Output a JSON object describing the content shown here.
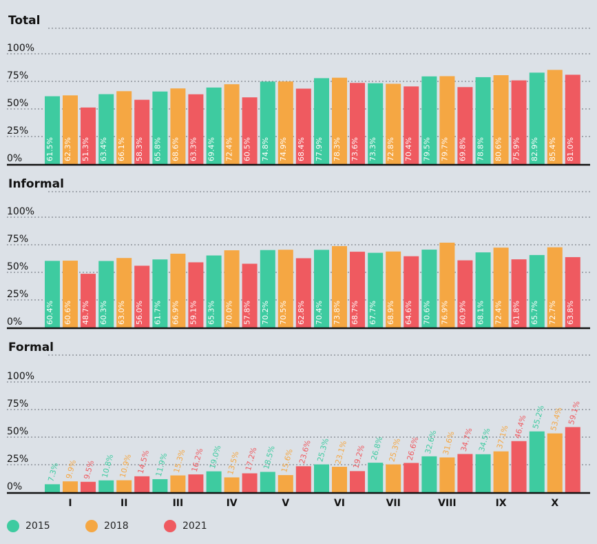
{
  "chart_data": {
    "type": "bar",
    "categories": [
      "I",
      "II",
      "III",
      "IV",
      "V",
      "VI",
      "VII",
      "VIII",
      "IX",
      "X"
    ],
    "y_ticks": [
      "0%",
      "25%",
      "50%",
      "75%",
      "100%"
    ],
    "ylim": [
      0,
      100
    ],
    "colors": {
      "2015": "#3ecba0",
      "2018": "#f5a743",
      "2021": "#ef5a60"
    },
    "legend": [
      {
        "name": "2015",
        "color": "#3ecba0"
      },
      {
        "name": "2018",
        "color": "#f5a743"
      },
      {
        "name": "2021",
        "color": "#ef5a60"
      }
    ],
    "panels": [
      {
        "title": "Total",
        "series": [
          {
            "name": "2015",
            "values": [
              61.5,
              63.4,
              65.8,
              69.4,
              74.8,
              77.9,
              73.3,
              79.5,
              78.8,
              82.9
            ],
            "labels": [
              "61.5%",
              "63.4%",
              "65.8%",
              "69.4%",
              "74.8%",
              "77.9%",
              "73.3%",
              "79.5%",
              "78.8%",
              "82.9%"
            ]
          },
          {
            "name": "2018",
            "values": [
              62.3,
              66.1,
              68.6,
              72.4,
              74.9,
              78.3,
              72.8,
              79.7,
              80.6,
              85.4
            ],
            "labels": [
              "62.3%",
              "66.1%",
              "68.6%",
              "72.4%",
              "74.9%",
              "78.3%",
              "72.8%",
              "79.7%",
              "80.6%",
              "85.4%"
            ]
          },
          {
            "name": "2021",
            "values": [
              51.3,
              58.3,
              63.3,
              60.5,
              68.4,
              73.6,
              70.4,
              69.8,
              75.9,
              81.0
            ],
            "labels": [
              "51.3%",
              "58.3%",
              "63.3%",
              "60.5%",
              "68.4%",
              "73.6%",
              "70.4%",
              "69.8%",
              "75.9%",
              "81.0%"
            ]
          }
        ]
      },
      {
        "title": "Informal",
        "series": [
          {
            "name": "2015",
            "values": [
              60.4,
              60.3,
              61.7,
              65.3,
              70.2,
              70.4,
              67.7,
              70.6,
              68.1,
              65.7
            ],
            "labels": [
              "60.4%",
              "60.3%",
              "61.7%",
              "65.3%",
              "70.2%",
              "70.4%",
              "67.7%",
              "70.6%",
              "68.1%",
              "65.7%"
            ]
          },
          {
            "name": "2018",
            "values": [
              60.6,
              63.0,
              66.9,
              70.0,
              70.5,
              73.8,
              68.9,
              76.9,
              72.4,
              72.7
            ],
            "labels": [
              "60.6%",
              "63.0%",
              "66.9%",
              "70.0%",
              "70.5%",
              "73.8%",
              "68.9%",
              "76.9%",
              "72.4%",
              "72.7%"
            ]
          },
          {
            "name": "2021",
            "values": [
              48.7,
              56.0,
              59.1,
              57.8,
              62.8,
              68.7,
              64.6,
              60.9,
              61.8,
              63.8
            ],
            "labels": [
              "48.7%",
              "56.0%",
              "59.1%",
              "57.8%",
              "62.8%",
              "68.7%",
              "64.6%",
              "60.9%",
              "61.8%",
              "63.8%"
            ]
          }
        ]
      },
      {
        "title": "Formal",
        "series": [
          {
            "name": "2015",
            "values": [
              7.3,
              10.8,
              11.9,
              19.0,
              18.5,
              25.3,
              26.8,
              32.6,
              34.5,
              55.2
            ],
            "labels": [
              "7.3%",
              "10.8%",
              "11.9%",
              "19.0%",
              "18.5%",
              "25.3%",
              "26.8%",
              "32.6%",
              "34.5%",
              "55.2%"
            ]
          },
          {
            "name": "2018",
            "values": [
              9.9,
              10.9,
              15.3,
              13.5,
              15.6,
              23.1,
              25.3,
              31.6,
              37.1,
              53.4
            ],
            "labels": [
              "9.9%",
              "10.9%",
              "15.3%",
              "13.5%",
              "15.6%",
              "23.1%",
              "25.3%",
              "31.6%",
              "37.1%",
              "53.4%"
            ]
          },
          {
            "name": "2021",
            "values": [
              9.5,
              14.5,
              16.2,
              17.2,
              23.6,
              19.2,
              26.6,
              34.7,
              46.4,
              59.1
            ],
            "labels": [
              "9.5%",
              "14.5%",
              "16.2%",
              "17.2%",
              "23.6%",
              "19.2%",
              "26.6%",
              "34.7%",
              "46.4%",
              "59.1%"
            ]
          }
        ]
      }
    ]
  }
}
